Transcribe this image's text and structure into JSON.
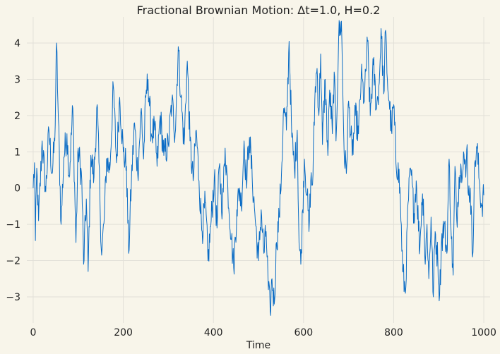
{
  "chart_data": {
    "type": "line",
    "title": "Fractional Brownian Motion: Δt=1.0, H=0.2",
    "xlabel": "Time",
    "ylabel": "",
    "xlim": [
      -14,
      1014
    ],
    "ylim": [
      -3.72,
      4.72
    ],
    "x_ticks": [
      0,
      200,
      400,
      600,
      800,
      1000
    ],
    "x_tick_labels": [
      "0",
      "200",
      "400",
      "600",
      "800",
      "1000"
    ],
    "y_ticks": [
      -3,
      -2,
      -1,
      0,
      1,
      2,
      3,
      4
    ],
    "y_tick_labels": [
      "−3",
      "−2",
      "−1",
      "0",
      "1",
      "2",
      "3",
      "4"
    ],
    "grid": true,
    "line_color": "#0b6cc5",
    "background": "#f8f5ea",
    "series": [
      {
        "x_start": 0,
        "x_step": 1,
        "n_points": 1001,
        "anchors": [
          [
            0,
            0.0
          ],
          [
            3,
            0.7
          ],
          [
            5,
            -1.45
          ],
          [
            8,
            0.55
          ],
          [
            12,
            -0.9
          ],
          [
            20,
            1.3
          ],
          [
            28,
            -0.1
          ],
          [
            35,
            1.6
          ],
          [
            42,
            0.4
          ],
          [
            48,
            1.3
          ],
          [
            52,
            4.0
          ],
          [
            55,
            2.35
          ],
          [
            62,
            -1.0
          ],
          [
            68,
            0.85
          ],
          [
            75,
            1.5
          ],
          [
            80,
            0.3
          ],
          [
            88,
            2.2
          ],
          [
            95,
            -1.5
          ],
          [
            100,
            1.1
          ],
          [
            108,
            0.2
          ],
          [
            112,
            -2.1
          ],
          [
            118,
            -0.3
          ],
          [
            122,
            -2.3
          ],
          [
            128,
            0.9
          ],
          [
            135,
            0.3
          ],
          [
            142,
            2.3
          ],
          [
            148,
            -0.2
          ],
          [
            152,
            -1.85
          ],
          [
            158,
            -0.8
          ],
          [
            163,
            0.8
          ],
          [
            170,
            0.5
          ],
          [
            178,
            2.8
          ],
          [
            185,
            0.7
          ],
          [
            192,
            2.5
          ],
          [
            200,
            1.0
          ],
          [
            207,
            0.6
          ],
          [
            212,
            -1.8
          ],
          [
            218,
            0.2
          ],
          [
            225,
            1.8
          ],
          [
            232,
            0.4
          ],
          [
            240,
            2.2
          ],
          [
            245,
            0.8
          ],
          [
            250,
            2.5
          ],
          [
            255,
            3.0
          ],
          [
            262,
            1.5
          ],
          [
            270,
            1.6
          ],
          [
            275,
            0.6
          ],
          [
            282,
            2.0
          ],
          [
            290,
            0.9
          ],
          [
            300,
            1.2
          ],
          [
            308,
            2.4
          ],
          [
            315,
            1.5
          ],
          [
            322,
            3.9
          ],
          [
            328,
            2.5
          ],
          [
            335,
            1.2
          ],
          [
            342,
            3.5
          ],
          [
            348,
            1.3
          ],
          [
            355,
            0.2
          ],
          [
            362,
            1.6
          ],
          [
            368,
            0.2
          ],
          [
            375,
            -1.2
          ],
          [
            382,
            -0.4
          ],
          [
            388,
            -2.0
          ],
          [
            395,
            -0.9
          ],
          [
            402,
            0.3
          ],
          [
            408,
            -1.1
          ],
          [
            413,
            0.6
          ],
          [
            420,
            -0.6
          ],
          [
            426,
            1.1
          ],
          [
            432,
            0.0
          ],
          [
            440,
            -1.4
          ],
          [
            445,
            -2.2
          ],
          [
            452,
            -0.6
          ],
          [
            458,
            0.0
          ],
          [
            462,
            -0.5
          ],
          [
            468,
            1.3
          ],
          [
            473,
            0.2
          ],
          [
            480,
            1.4
          ],
          [
            486,
            0.3
          ],
          [
            492,
            -0.7
          ],
          [
            500,
            -2.0
          ],
          [
            506,
            -0.6
          ],
          [
            512,
            -1.8
          ],
          [
            517,
            -1.2
          ],
          [
            522,
            -2.8
          ],
          [
            526,
            -3.4
          ],
          [
            530,
            -2.5
          ],
          [
            535,
            -3.2
          ],
          [
            540,
            -1.5
          ],
          [
            546,
            -0.8
          ],
          [
            552,
            0.7
          ],
          [
            556,
            2.2
          ],
          [
            562,
            1.6
          ],
          [
            568,
            4.05
          ],
          [
            574,
            1.4
          ],
          [
            580,
            0.5
          ],
          [
            586,
            1.6
          ],
          [
            590,
            -1.5
          ],
          [
            594,
            -2.1
          ],
          [
            598,
            -0.6
          ],
          [
            602,
            0.8
          ],
          [
            608,
            -0.2
          ],
          [
            612,
            -1.2
          ],
          [
            616,
            0.2
          ],
          [
            620,
            0.1
          ],
          [
            626,
            2.8
          ],
          [
            630,
            3.3
          ],
          [
            634,
            2.0
          ],
          [
            638,
            3.7
          ],
          [
            642,
            1.2
          ],
          [
            648,
            3.0
          ],
          [
            654,
            0.9
          ],
          [
            658,
            2.7
          ],
          [
            664,
            1.5
          ],
          [
            668,
            3.2
          ],
          [
            672,
            1.3
          ],
          [
            678,
            4.2
          ],
          [
            684,
            4.6
          ],
          [
            690,
            1.0
          ],
          [
            695,
            0.4
          ],
          [
            700,
            2.4
          ],
          [
            708,
            0.9
          ],
          [
            715,
            2.0
          ],
          [
            722,
            1.5
          ],
          [
            728,
            3.1
          ],
          [
            735,
            2.4
          ],
          [
            742,
            4.05
          ],
          [
            748,
            2.0
          ],
          [
            755,
            3.4
          ],
          [
            762,
            2.2
          ],
          [
            768,
            2.9
          ],
          [
            772,
            4.4
          ],
          [
            778,
            2.6
          ],
          [
            782,
            4.35
          ],
          [
            786,
            3.0
          ],
          [
            790,
            2.4
          ],
          [
            795,
            1.6
          ],
          [
            800,
            2.3
          ],
          [
            806,
            0.5
          ],
          [
            810,
            0.7
          ],
          [
            815,
            -0.4
          ],
          [
            820,
            -2.3
          ],
          [
            826,
            -2.9
          ],
          [
            832,
            -0.4
          ],
          [
            838,
            0.5
          ],
          [
            845,
            -0.7
          ],
          [
            850,
            0.2
          ],
          [
            858,
            -1.7
          ],
          [
            862,
            -0.4
          ],
          [
            866,
            -0.3
          ],
          [
            870,
            -2.1
          ],
          [
            874,
            -1.0
          ],
          [
            878,
            -2.5
          ],
          [
            883,
            -0.8
          ],
          [
            888,
            -3.0
          ],
          [
            892,
            -1.2
          ],
          [
            898,
            -2.0
          ],
          [
            902,
            -2.95
          ],
          [
            906,
            -1.5
          ],
          [
            912,
            -1.0
          ],
          [
            918,
            -1.8
          ],
          [
            923,
            0.8
          ],
          [
            928,
            -1.4
          ],
          [
            932,
            -2.4
          ],
          [
            936,
            0.6
          ],
          [
            940,
            -0.9
          ],
          [
            945,
            0.3
          ],
          [
            950,
            0.5
          ],
          [
            955,
            1.0
          ],
          [
            960,
            0.3
          ],
          [
            963,
            1.2
          ],
          [
            966,
            -0.2
          ],
          [
            970,
            0.0
          ],
          [
            975,
            -1.9
          ],
          [
            980,
            0.7
          ],
          [
            985,
            1.1
          ],
          [
            990,
            0.2
          ],
          [
            995,
            -0.5
          ],
          [
            1000,
            -0.2
          ]
        ]
      }
    ]
  }
}
